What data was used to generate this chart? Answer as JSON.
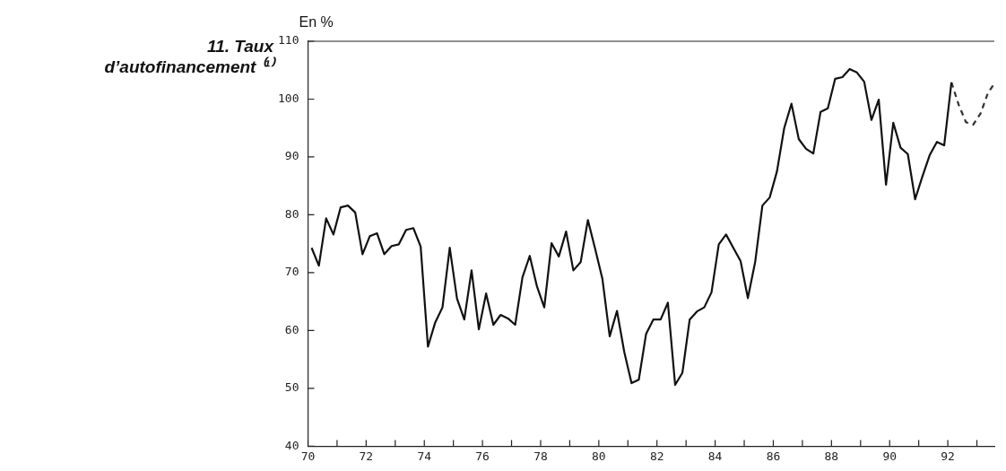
{
  "chart_data": {
    "type": "line",
    "title": "11. Taux d’autofinancement ⁽¹⁾",
    "ylabel": "En %",
    "xlim": [
      70,
      93.6
    ],
    "ylim": [
      40,
      110
    ],
    "xticks": [
      70,
      {
        "value": 71,
        "label": null
      },
      72,
      {
        "value": 73,
        "label": null
      },
      74,
      {
        "value": 75,
        "label": null
      },
      76,
      {
        "value": 77,
        "label": null
      },
      78,
      {
        "value": 79,
        "label": null
      },
      80,
      {
        "value": 81,
        "label": null
      },
      82,
      {
        "value": 83,
        "label": null
      },
      84,
      {
        "value": 85,
        "label": null
      },
      86,
      {
        "value": 87,
        "label": null
      },
      88,
      {
        "value": 89,
        "label": null
      },
      90,
      {
        "value": 91,
        "label": null
      },
      92,
      {
        "value": 93,
        "label": null
      }
    ],
    "yticks": [
      40,
      50,
      60,
      70,
      80,
      90,
      100,
      110
    ],
    "grid": false,
    "legend": false,
    "marker": "none",
    "series": [
      {
        "color": "#111111",
        "line_style": "solid",
        "x": [
          70.125,
          70.375,
          70.625,
          70.875,
          71.125,
          71.375,
          71.625,
          71.875,
          72.125,
          72.375,
          72.625,
          72.875,
          73.125,
          73.375,
          73.625,
          73.875,
          74.125,
          74.375,
          74.625,
          74.875,
          75.125,
          75.375,
          75.625,
          75.875,
          76.125,
          76.375,
          76.625,
          76.875,
          77.125,
          77.375,
          77.625,
          77.875,
          78.125,
          78.375,
          78.625,
          78.875,
          79.125,
          79.375,
          79.625,
          79.875,
          80.125,
          80.375,
          80.625,
          80.875,
          81.125,
          81.375,
          81.625,
          81.875,
          82.125,
          82.375,
          82.625,
          82.875,
          83.125,
          83.375,
          83.625,
          83.875,
          84.125,
          84.375,
          84.625,
          84.875,
          85.125,
          85.375,
          85.625,
          85.875,
          86.125,
          86.375,
          86.625,
          86.875,
          87.125,
          87.375,
          87.625,
          87.875,
          88.125,
          88.375,
          88.625,
          88.875,
          89.125,
          89.375,
          89.625,
          89.875,
          90.125,
          90.375,
          90.625,
          90.875,
          91.125,
          91.375,
          91.625,
          91.875,
          92.125
        ],
        "values": [
          74.3,
          71.2,
          79.4,
          76.6,
          81.3,
          81.6,
          80.4,
          73.2,
          76.3,
          76.8,
          73.2,
          74.6,
          74.9,
          77.4,
          77.7,
          74.5,
          57.2,
          61.4,
          64,
          74.3,
          65.5,
          61.9,
          70.4,
          60.2,
          66.4,
          61,
          62.7,
          62.1,
          61,
          69.2,
          72.9,
          67.6,
          64,
          75.1,
          72.8,
          77.1,
          70.4,
          71.8,
          79.1,
          74.1,
          68.9,
          59,
          63.4,
          56.3,
          50.9,
          51.5,
          59.4,
          61.9,
          61.9,
          64.8,
          50.6,
          52.7,
          61.9,
          63.3,
          64,
          66.6,
          74.9,
          76.6,
          74.3,
          72,
          65.6,
          71.8,
          81.6,
          83,
          87.5,
          95,
          99.2,
          93.1,
          91.4,
          90.6,
          97.8,
          98.4,
          103.5,
          103.8,
          105.2,
          104.6,
          103,
          96.4,
          99.9,
          85.2,
          95.9,
          91.6,
          90.5,
          82.7,
          86.6,
          90.3,
          92.6,
          92,
          102.9
        ]
      },
      {
        "color": "#333333",
        "line_style": "dashed",
        "x": [
          92.125,
          92.375,
          92.625,
          92.875,
          93.125,
          93.375,
          93.6
        ],
        "values": [
          102.9,
          99,
          96,
          95.6,
          97.5,
          101,
          102.7
        ]
      }
    ]
  }
}
